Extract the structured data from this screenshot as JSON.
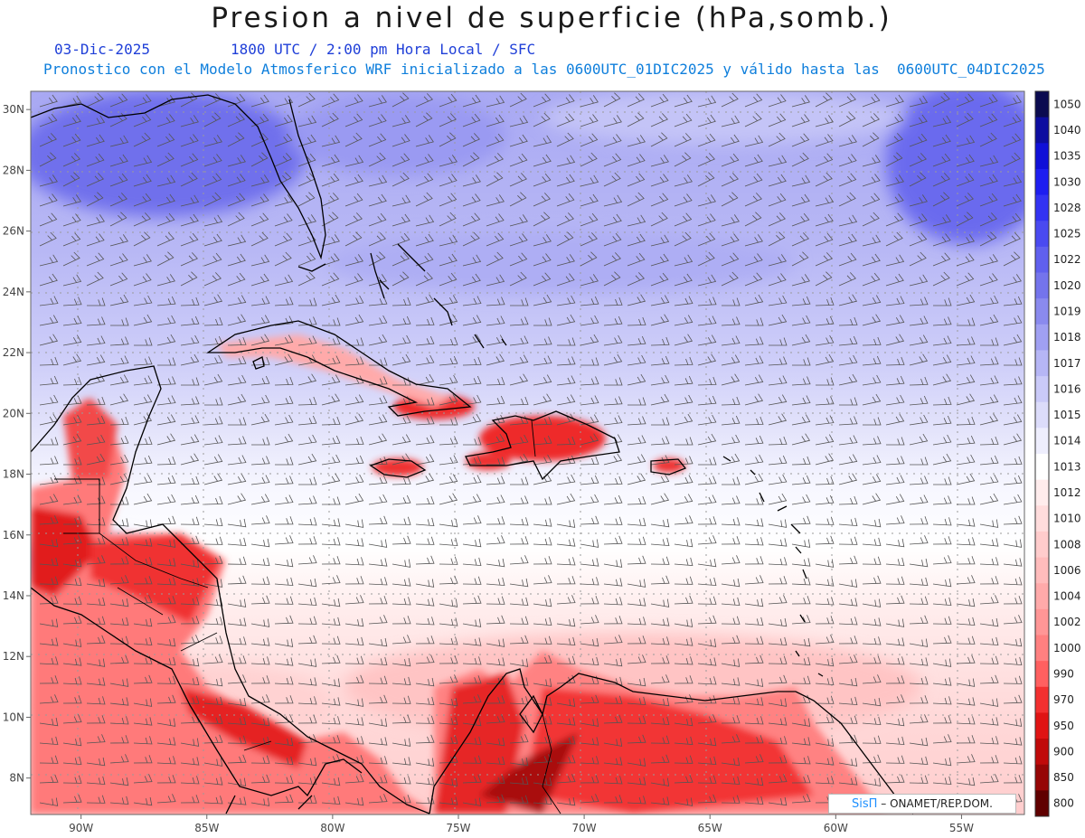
{
  "header": {
    "title": "Presion a nivel de superficie (hPa,somb.)",
    "date": "03-Dic-2025",
    "time": "1800 UTC / 2:00 pm Hora Local / SFC",
    "model": "Pronostico con el Modelo Atmosferico WRF inicializado a las 0600UTC_01DIC2025 y válido hasta las  0600UTC_04DIC2025"
  },
  "map": {
    "lon_labels": [
      "90W",
      "85W",
      "80W",
      "75W",
      "70W",
      "65W",
      "60W",
      "55W"
    ],
    "lat_labels": [
      "30N",
      "28N",
      "26N",
      "24N",
      "22N",
      "20N",
      "18N",
      "16N",
      "14N",
      "12N",
      "10N",
      "8N"
    ],
    "lon_range": [
      -92,
      -52.5
    ],
    "lat_range": [
      6.8,
      30.6
    ]
  },
  "colorbar": {
    "levels": [
      "1050",
      "1040",
      "1035",
      "1030",
      "1028",
      "1025",
      "1022",
      "1020",
      "1019",
      "1018",
      "1017",
      "1016",
      "1015",
      "1014",
      "1013",
      "1012",
      "1010",
      "1008",
      "1006",
      "1004",
      "1002",
      "1000",
      "990",
      "970",
      "950",
      "900",
      "850",
      "800"
    ],
    "colors": [
      "#0b0b50",
      "#0d0da0",
      "#1010d8",
      "#1e1ef0",
      "#3333f2",
      "#4a4af0",
      "#6060ee",
      "#7474ec",
      "#8a8aee",
      "#a0a0f2",
      "#b6b6f5",
      "#cacaf8",
      "#dcdcfa",
      "#eeeefd",
      "#ffffff",
      "#ffecec",
      "#ffdcdc",
      "#ffcccc",
      "#ffbcbc",
      "#ffaaaa",
      "#ff9696",
      "#ff8080",
      "#ff6060",
      "#f23030",
      "#e01414",
      "#c00a0a",
      "#960606",
      "#600000"
    ]
  },
  "credit": {
    "brand": "SisΠ",
    "text": "– ONAMET/REP.DOM."
  }
}
